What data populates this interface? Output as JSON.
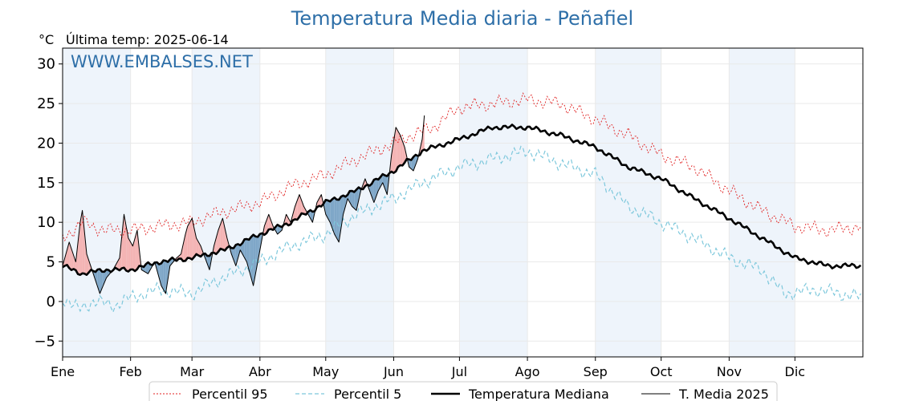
{
  "chart_data": {
    "type": "line",
    "title": "Temperatura Media diaria - Peñafiel",
    "unit_label": "°C",
    "last_temp_label": "Última temp: 2025-06-14",
    "watermark": "WWW.EMBALSES.NET",
    "xlabel": "",
    "ylabel": "",
    "ylim": [
      -7,
      32
    ],
    "yticks": [
      -5,
      0,
      5,
      10,
      15,
      20,
      25,
      30
    ],
    "ytick_labels": [
      "−5",
      "0",
      "5",
      "10",
      "15",
      "20",
      "25",
      "30"
    ],
    "xlim": [
      1,
      366
    ],
    "month_labels": [
      "Ene",
      "Feb",
      "Mar",
      "Abr",
      "May",
      "Jun",
      "Jul",
      "Ago",
      "Sep",
      "Oct",
      "Nov",
      "Dic"
    ],
    "month_starts": [
      1,
      32,
      60,
      91,
      121,
      152,
      182,
      213,
      244,
      274,
      305,
      335
    ],
    "shaded_months": [
      0,
      2,
      4,
      6,
      8,
      10
    ],
    "grid": true,
    "legend_position": "bottom",
    "colors": {
      "p95": "#e02020",
      "p5": "#7ec8dc",
      "median": "#000000",
      "current": "#000000",
      "above_fill": "#f4b4b4",
      "below_fill": "#7fa7c8",
      "shade": "#eef4fb"
    },
    "series": [
      {
        "name": "Percentil 95",
        "style": "dotted",
        "keypoints": [
          [
            1,
            8
          ],
          [
            10,
            10
          ],
          [
            20,
            9
          ],
          [
            32,
            9
          ],
          [
            45,
            9.5
          ],
          [
            60,
            10
          ],
          [
            70,
            11
          ],
          [
            91,
            12.5
          ],
          [
            105,
            14.5
          ],
          [
            121,
            16
          ],
          [
            135,
            18
          ],
          [
            152,
            20
          ],
          [
            160,
            21
          ],
          [
            170,
            22
          ],
          [
            182,
            24.5
          ],
          [
            197,
            25
          ],
          [
            213,
            25.5
          ],
          [
            228,
            25
          ],
          [
            244,
            23
          ],
          [
            259,
            21
          ],
          [
            274,
            18.5
          ],
          [
            289,
            17
          ],
          [
            305,
            14
          ],
          [
            320,
            11.5
          ],
          [
            335,
            9.5
          ],
          [
            350,
            9
          ],
          [
            366,
            9.5
          ]
        ]
      },
      {
        "name": "Percentil 5",
        "style": "dashed",
        "keypoints": [
          [
            1,
            0.5
          ],
          [
            8,
            -1
          ],
          [
            15,
            0
          ],
          [
            25,
            -0.5
          ],
          [
            32,
            0.5
          ],
          [
            45,
            1.5
          ],
          [
            60,
            1
          ],
          [
            70,
            2.5
          ],
          [
            91,
            5
          ],
          [
            105,
            7
          ],
          [
            121,
            8.5
          ],
          [
            135,
            11
          ],
          [
            152,
            13
          ],
          [
            165,
            15
          ],
          [
            182,
            17
          ],
          [
            197,
            18
          ],
          [
            213,
            19
          ],
          [
            228,
            17.5
          ],
          [
            244,
            16
          ],
          [
            259,
            12
          ],
          [
            274,
            10
          ],
          [
            289,
            8
          ],
          [
            305,
            5.5
          ],
          [
            320,
            4
          ],
          [
            330,
            1
          ],
          [
            345,
            1.5
          ],
          [
            366,
            0.5
          ]
        ]
      },
      {
        "name": "Temperatura Mediana",
        "style": "thick",
        "keypoints": [
          [
            1,
            4.5
          ],
          [
            10,
            3.5
          ],
          [
            20,
            4
          ],
          [
            32,
            4
          ],
          [
            45,
            5
          ],
          [
            60,
            5.5
          ],
          [
            75,
            6.5
          ],
          [
            91,
            8.5
          ],
          [
            105,
            10
          ],
          [
            121,
            12.5
          ],
          [
            135,
            14
          ],
          [
            152,
            16.5
          ],
          [
            165,
            19
          ],
          [
            182,
            20.5
          ],
          [
            197,
            22
          ],
          [
            213,
            22
          ],
          [
            228,
            21
          ],
          [
            244,
            19.5
          ],
          [
            259,
            17
          ],
          [
            274,
            15.5
          ],
          [
            289,
            13
          ],
          [
            305,
            10.5
          ],
          [
            320,
            8
          ],
          [
            335,
            5.5
          ],
          [
            350,
            4.5
          ],
          [
            366,
            4.5
          ]
        ]
      },
      {
        "name": "T. Media 2025",
        "style": "thin",
        "keypoints": [
          [
            1,
            4.5
          ],
          [
            4,
            7.5
          ],
          [
            7,
            5
          ],
          [
            9,
            10
          ],
          [
            10,
            11.5
          ],
          [
            12,
            6
          ],
          [
            15,
            3.5
          ],
          [
            18,
            1
          ],
          [
            21,
            3
          ],
          [
            24,
            4
          ],
          [
            27,
            5.5
          ],
          [
            29,
            11
          ],
          [
            31,
            8
          ],
          [
            33,
            7
          ],
          [
            35,
            9
          ],
          [
            37,
            4
          ],
          [
            40,
            3.5
          ],
          [
            43,
            5
          ],
          [
            46,
            2
          ],
          [
            48,
            1
          ],
          [
            50,
            4.5
          ],
          [
            53,
            5.5
          ],
          [
            55,
            6
          ],
          [
            57,
            8.5
          ],
          [
            58,
            9.5
          ],
          [
            60,
            10.5
          ],
          [
            62,
            8
          ],
          [
            64,
            7
          ],
          [
            66,
            5.5
          ],
          [
            68,
            4
          ],
          [
            70,
            7
          ],
          [
            72,
            9
          ],
          [
            74,
            10.5
          ],
          [
            76,
            8
          ],
          [
            78,
            6
          ],
          [
            80,
            4.5
          ],
          [
            82,
            6.5
          ],
          [
            85,
            5
          ],
          [
            88,
            2
          ],
          [
            90,
            5
          ],
          [
            93,
            9.5
          ],
          [
            95,
            11
          ],
          [
            97,
            9.5
          ],
          [
            99,
            8.5
          ],
          [
            101,
            9
          ],
          [
            103,
            11
          ],
          [
            105,
            10
          ],
          [
            107,
            12
          ],
          [
            109,
            13.5
          ],
          [
            111,
            12
          ],
          [
            113,
            11
          ],
          [
            115,
            10
          ],
          [
            117,
            12.5
          ],
          [
            119,
            13.5
          ],
          [
            121,
            11
          ],
          [
            123,
            10
          ],
          [
            125,
            8.5
          ],
          [
            127,
            7.5
          ],
          [
            129,
            11
          ],
          [
            131,
            13
          ],
          [
            133,
            12
          ],
          [
            135,
            11.5
          ],
          [
            137,
            14
          ],
          [
            139,
            15.5
          ],
          [
            141,
            14
          ],
          [
            143,
            12.5
          ],
          [
            145,
            14
          ],
          [
            147,
            15
          ],
          [
            149,
            13.5
          ],
          [
            151,
            18.5
          ],
          [
            153,
            22
          ],
          [
            155,
            21
          ],
          [
            157,
            19.5
          ],
          [
            159,
            17
          ],
          [
            161,
            16.5
          ],
          [
            163,
            18
          ],
          [
            165,
            20.5
          ],
          [
            166,
            23.5
          ]
        ]
      }
    ]
  }
}
